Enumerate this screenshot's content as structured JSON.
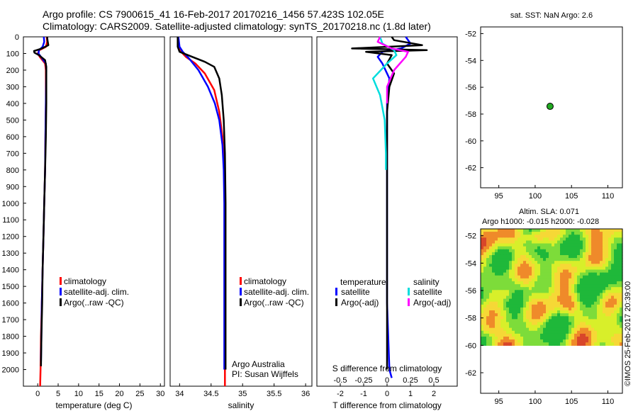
{
  "header": {
    "line1": "Argo profile: CS 7900615_41 16-Feb-2017 20170216_1456 57.423S 102.05E",
    "line2": "Climatology: CARS2009. Satellite-adjusted climatology: synTS_20170218.nc (1.8d later)"
  },
  "chart_data": [
    {
      "id": "temperature",
      "type": "line",
      "xlabel": "temperature (deg C)",
      "xlim": [
        -3.5,
        31
      ],
      "xticks": [
        0,
        5,
        10,
        15,
        20,
        25,
        30
      ],
      "ylim": [
        2100,
        0
      ],
      "yticks": [
        0,
        100,
        200,
        300,
        400,
        500,
        600,
        700,
        800,
        900,
        1000,
        1100,
        1200,
        1300,
        1400,
        1500,
        1600,
        1700,
        1800,
        1900,
        2000
      ],
      "legend": [
        "climatology",
        "satellite-adj. clim.",
        "Argo(..raw -QC)"
      ],
      "series": [
        {
          "name": "climatology",
          "color": "#ff0000",
          "points": [
            [
              2.2,
              0
            ],
            [
              2.3,
              30
            ],
            [
              2.0,
              60
            ],
            [
              0.4,
              80
            ],
            [
              0.0,
              100
            ],
            [
              0.5,
              120
            ],
            [
              1.8,
              160
            ],
            [
              2.0,
              200
            ],
            [
              2.0,
              400
            ],
            [
              1.9,
              600
            ],
            [
              1.8,
              800
            ],
            [
              1.6,
              1000
            ],
            [
              1.4,
              1200
            ],
            [
              1.2,
              1400
            ],
            [
              1.0,
              1600
            ],
            [
              0.8,
              1800
            ],
            [
              0.7,
              2000
            ],
            [
              0.6,
              2100
            ]
          ]
        },
        {
          "name": "satellite-adj. clim.",
          "color": "#0000ff",
          "points": [
            [
              1.5,
              0
            ],
            [
              1.6,
              30
            ],
            [
              1.2,
              60
            ],
            [
              0.3,
              80
            ],
            [
              0.2,
              100
            ],
            [
              0.8,
              120
            ],
            [
              2.0,
              160
            ],
            [
              2.1,
              200
            ],
            [
              2.0,
              400
            ],
            [
              1.9,
              600
            ],
            [
              1.8,
              800
            ],
            [
              1.6,
              1000
            ],
            [
              1.4,
              1200
            ],
            [
              1.2,
              1400
            ],
            [
              1.0,
              1600
            ],
            [
              0.9,
              1800
            ],
            [
              0.8,
              1950
            ]
          ]
        },
        {
          "name": "Argo(..raw -QC)",
          "color": "#000000",
          "points": [
            [
              2.3,
              0
            ],
            [
              2.4,
              20
            ],
            [
              2.6,
              50
            ],
            [
              1.0,
              70
            ],
            [
              -0.9,
              85
            ],
            [
              -0.8,
              95
            ],
            [
              0.3,
              110
            ],
            [
              1.8,
              140
            ],
            [
              2.1,
              180
            ],
            [
              2.1,
              400
            ],
            [
              2.0,
              600
            ],
            [
              1.8,
              800
            ],
            [
              1.6,
              1000
            ],
            [
              1.4,
              1200
            ],
            [
              1.2,
              1400
            ],
            [
              1.1,
              1600
            ],
            [
              0.9,
              1800
            ],
            [
              0.8,
              1980
            ]
          ]
        }
      ]
    },
    {
      "id": "salinity",
      "type": "line",
      "xlabel": "salinity",
      "xlim": [
        33.85,
        36.1
      ],
      "xticks": [
        34,
        34.5,
        35,
        35.5,
        36
      ],
      "ylim": [
        2100,
        0
      ],
      "legend": [
        "climatology",
        "satellite-adj. clim.",
        "Argo(..raw -QC)"
      ],
      "annotation": [
        "Argo Australia",
        "PI: Susan Wijffels"
      ],
      "series": [
        {
          "name": "climatology",
          "color": "#ff0000",
          "points": [
            [
              33.98,
              0
            ],
            [
              33.99,
              50
            ],
            [
              34.0,
              80
            ],
            [
              34.1,
              120
            ],
            [
              34.25,
              160
            ],
            [
              34.4,
              220
            ],
            [
              34.55,
              320
            ],
            [
              34.63,
              450
            ],
            [
              34.68,
              600
            ],
            [
              34.71,
              800
            ],
            [
              34.72,
              1000
            ],
            [
              34.72,
              1500
            ],
            [
              34.72,
              2000
            ],
            [
              34.72,
              2100
            ]
          ]
        },
        {
          "name": "satellite-adj. clim.",
          "color": "#0000ff",
          "points": [
            [
              33.98,
              0
            ],
            [
              34.0,
              60
            ],
            [
              34.05,
              90
            ],
            [
              34.15,
              130
            ],
            [
              34.3,
              200
            ],
            [
              34.45,
              300
            ],
            [
              34.56,
              400
            ],
            [
              34.63,
              500
            ],
            [
              34.68,
              650
            ],
            [
              34.7,
              800
            ],
            [
              34.71,
              1000
            ],
            [
              34.71,
              1500
            ],
            [
              34.71,
              2000
            ]
          ]
        },
        {
          "name": "Argo(..raw -QC)",
          "color": "#000000",
          "points": [
            [
              33.97,
              0
            ],
            [
              33.97,
              60
            ],
            [
              34.0,
              90
            ],
            [
              34.2,
              120
            ],
            [
              34.4,
              150
            ],
            [
              34.55,
              180
            ],
            [
              34.63,
              250
            ],
            [
              34.67,
              350
            ],
            [
              34.7,
              500
            ],
            [
              34.72,
              700
            ],
            [
              34.73,
              1000
            ],
            [
              34.73,
              1500
            ],
            [
              34.73,
              2000
            ]
          ]
        }
      ]
    },
    {
      "id": "difference",
      "type": "line",
      "xlabel": "T difference from climatology",
      "xlabel_top": "S difference from climatology",
      "xlim": [
        -3,
        3
      ],
      "xticks": [
        -2,
        -1,
        0,
        1,
        2
      ],
      "sticks": [
        -0.5,
        -0.25,
        0,
        0.25,
        0.5
      ],
      "sticklabels": [
        "-0.5",
        "-0.25",
        "0",
        "0.25",
        "0.5"
      ],
      "ylim": [
        2100,
        0
      ],
      "legend_groups": [
        "temperature",
        "salinity"
      ],
      "legend": [
        [
          "satellite",
          "Argo(-adj)"
        ],
        [
          "satellite",
          "Argo(-adj)"
        ]
      ],
      "series": [
        {
          "name": "temperature satellite",
          "color": "#0000ff",
          "points": [
            [
              0.8,
              0
            ],
            [
              1.0,
              40
            ],
            [
              0.6,
              70
            ],
            [
              -0.2,
              90
            ],
            [
              -0.4,
              120
            ],
            [
              -0.2,
              160
            ],
            [
              0.1,
              250
            ],
            [
              0.0,
              400
            ],
            [
              0.0,
              800
            ],
            [
              0.0,
              1200
            ],
            [
              0.0,
              1600
            ],
            [
              0.1,
              2000
            ],
            [
              0.2,
              2050
            ]
          ]
        },
        {
          "name": "temperature Argo(-adj)",
          "color": "#000000",
          "points": [
            [
              0.2,
              0
            ],
            [
              0.3,
              20
            ],
            [
              1.5,
              50
            ],
            [
              -1.5,
              70
            ],
            [
              1.7,
              80
            ],
            [
              -0.9,
              90
            ],
            [
              0.2,
              110
            ],
            [
              0.0,
              160
            ],
            [
              0.3,
              220
            ],
            [
              0.1,
              300
            ],
            [
              0.0,
              450
            ],
            [
              0.0,
              800
            ],
            [
              0.0,
              1200
            ],
            [
              0.0,
              1600
            ],
            [
              0.0,
              2000
            ]
          ]
        },
        {
          "name": "salinity satellite",
          "color": "#00dddd",
          "points": [
            [
              -0.3,
              0
            ],
            [
              -0.2,
              40
            ],
            [
              0.3,
              80
            ],
            [
              0.4,
              110
            ],
            [
              0.0,
              160
            ],
            [
              -0.6,
              250
            ],
            [
              -0.3,
              350
            ],
            [
              -0.1,
              500
            ],
            [
              -0.05,
              700
            ],
            [
              -0.05,
              800
            ]
          ]
        },
        {
          "name": "salinity Argo(-adj)",
          "color": "#ff00ff",
          "points": [
            [
              -0.3,
              0
            ],
            [
              -0.4,
              30
            ],
            [
              0.2,
              70
            ],
            [
              0.9,
              90
            ],
            [
              0.8,
              120
            ],
            [
              0.3,
              200
            ],
            [
              0.0,
              300
            ],
            [
              0.0,
              400
            ]
          ]
        }
      ]
    },
    {
      "id": "sst-map",
      "type": "scatter",
      "title": "sat. SST: NaN Argo: 2.6",
      "xlim": [
        92.5,
        112
      ],
      "ylim": [
        -63.5,
        -51.5
      ],
      "xticks": [
        95,
        100,
        105,
        110
      ],
      "yticks": [
        -52,
        -54,
        -56,
        -58,
        -60,
        -62
      ],
      "points": [
        {
          "x": 102.05,
          "y": -57.423,
          "color": "#22aa22"
        }
      ]
    },
    {
      "id": "sla-map",
      "type": "heatmap",
      "title1": "Altim. SLA: 0.071",
      "title2": "Argo h1000: -0.015 h2000: -0.028",
      "xlim": [
        92.5,
        112
      ],
      "ylim": [
        -63.5,
        -51.5
      ],
      "data_ylim": [
        -60,
        -51.5
      ],
      "xticks": [
        95,
        100,
        105,
        110
      ],
      "yticks": [
        -52,
        -54,
        -56,
        -58,
        -60,
        -62
      ],
      "colors": [
        "#1fb83a",
        "#7ddc3a",
        "#d8ef2a",
        "#f6d836",
        "#ef8a2a",
        "#d8462a"
      ]
    }
  ],
  "footer": {
    "stamp": "©IMOS 25-Feb-2017 20:39:00"
  }
}
